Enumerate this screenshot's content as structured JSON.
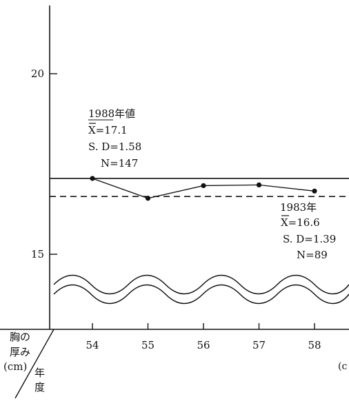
{
  "chart_data": {
    "type": "line",
    "x": [
      54,
      55,
      56,
      57,
      58
    ],
    "series": [
      {
        "values": [
          17.1,
          16.55,
          16.9,
          16.92,
          16.75
        ]
      }
    ],
    "reference_lines": [
      {
        "value": 17.1,
        "style": "solid"
      },
      {
        "value": 16.6,
        "style": "dashed"
      }
    ],
    "ylim": [
      12.2,
      21.6
    ],
    "xlim": [
      53.3,
      58.7
    ],
    "yticks": [
      15,
      20
    ],
    "y_tick_labels": [
      "15",
      "20"
    ],
    "x_tick_labels": [
      "54",
      "55",
      "56",
      "57",
      "58"
    ],
    "axis_break": true,
    "grid": false
  },
  "labels": {
    "ylabel_line1": "胸の",
    "ylabel_line2": "厚み",
    "ylabel_line3": "(cm)",
    "xlabel_line1": "年",
    "xlabel_line2": "度",
    "right_cut_label": "(c"
  },
  "annotations": {
    "a1988": {
      "title": "1988年値",
      "mean": "X=17.1",
      "sd": "S. D=1.58",
      "n": "N=147"
    },
    "a1983": {
      "title": "1983年",
      "mean": "X=16.6",
      "sd": "S. D=1.39",
      "n": "N=89"
    }
  }
}
